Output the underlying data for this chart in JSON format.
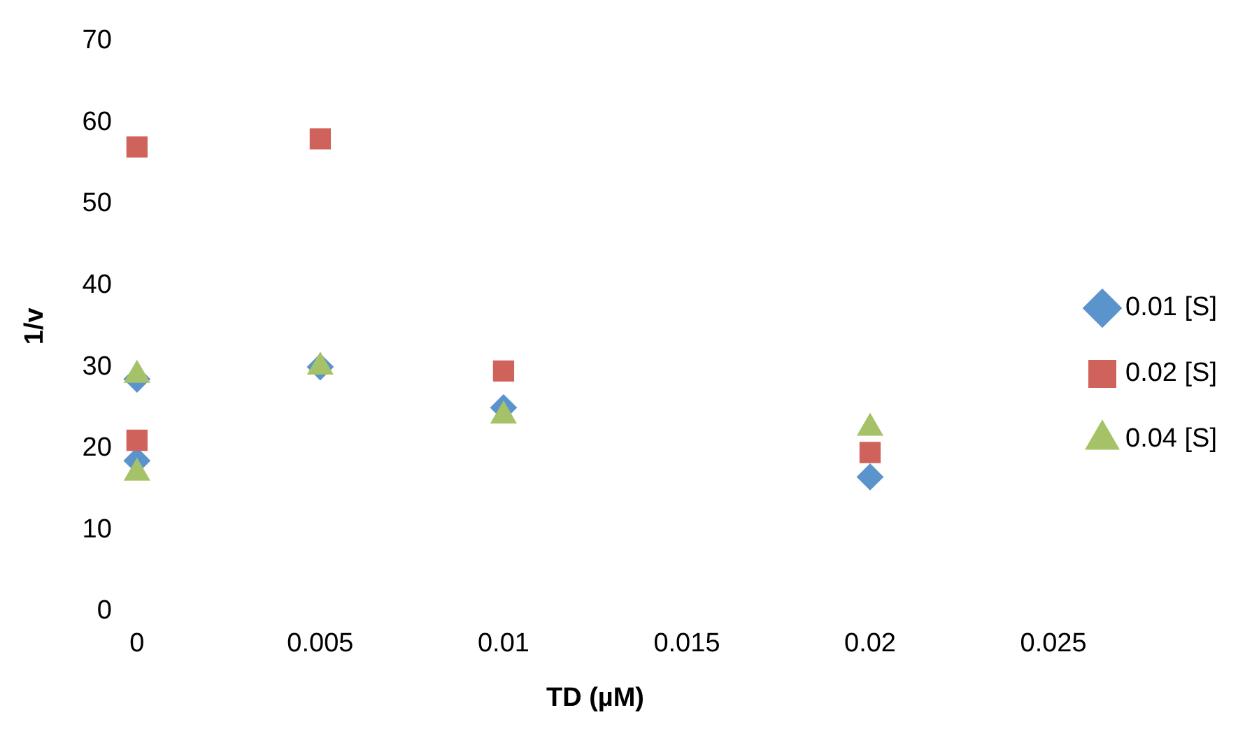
{
  "chart_data": {
    "type": "scatter",
    "xlabel": "TD (µM)",
    "ylabel": "1/v",
    "xlim": [
      0,
      0.025
    ],
    "xticks": [
      0,
      0.005,
      0.01,
      0.015,
      0.02,
      0.025
    ],
    "ylim": [
      0,
      70
    ],
    "yticks": [
      0,
      10,
      20,
      30,
      40,
      50,
      60,
      70
    ],
    "grid": false,
    "legend": "right",
    "series": [
      {
        "name": "0.01 [S]",
        "color": "#5b93cc",
        "marker": "diamond",
        "x": [
          0,
          0,
          0.005,
          0.01,
          0.02
        ],
        "values": [
          18.5,
          28.5,
          30,
          25,
          16.5
        ]
      },
      {
        "name": "0.02 [S]",
        "color": "#d0625c",
        "marker": "square",
        "x": [
          0,
          0,
          0.005,
          0.01,
          0.02
        ],
        "values": [
          21,
          57,
          58,
          29.5,
          19.5
        ]
      },
      {
        "name": "0.04 [S]",
        "color": "#a6c269",
        "marker": "triangle",
        "x": [
          0,
          0,
          0.005,
          0.01,
          0.02
        ],
        "values": [
          17,
          29,
          30,
          24,
          22.5
        ]
      }
    ]
  }
}
